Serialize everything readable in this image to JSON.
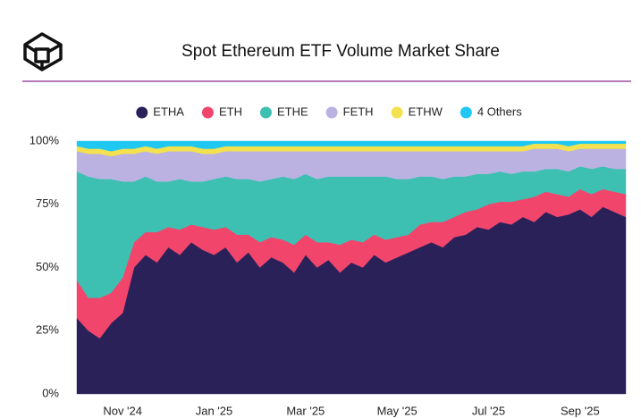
{
  "chart_data": {
    "type": "stacked-area",
    "title": "Spot Ethereum ETF Volume Market Share",
    "categories": [
      null,
      null,
      null,
      null,
      "Nov '24",
      null,
      null,
      null,
      null,
      null,
      null,
      null,
      "Jan '25",
      null,
      null,
      null,
      null,
      null,
      null,
      null,
      "Mar '25",
      null,
      null,
      null,
      null,
      null,
      null,
      null,
      "May '25",
      null,
      null,
      null,
      null,
      null,
      null,
      null,
      "Jul '25",
      null,
      null,
      null,
      null,
      null,
      null,
      null,
      "Sep '25",
      null,
      null,
      null,
      null
    ],
    "series": [
      {
        "name": "ETHA",
        "color": "#2b2159",
        "values": [
          30,
          25,
          22,
          28,
          32,
          50,
          55,
          52,
          58,
          55,
          60,
          57,
          55,
          58,
          52,
          56,
          50,
          54,
          52,
          48,
          55,
          50,
          53,
          48,
          52,
          50,
          55,
          52,
          54,
          56,
          58,
          60,
          58,
          62,
          63,
          66,
          65,
          68,
          67,
          70,
          68,
          72,
          70,
          71,
          73,
          70,
          74,
          72,
          70
        ]
      },
      {
        "name": "ETH",
        "color": "#f2456b",
        "values": [
          15,
          13,
          16,
          12,
          14,
          10,
          9,
          12,
          8,
          10,
          7,
          9,
          10,
          8,
          11,
          7,
          10,
          8,
          9,
          11,
          8,
          10,
          7,
          11,
          9,
          10,
          8,
          9,
          8,
          7,
          9,
          8,
          10,
          8,
          9,
          7,
          10,
          8,
          9,
          7,
          10,
          8,
          9,
          7,
          8,
          9,
          7,
          8,
          9
        ]
      },
      {
        "name": "ETHE",
        "color": "#3dbfb2",
        "values": [
          43,
          48,
          47,
          45,
          38,
          24,
          22,
          20,
          18,
          20,
          17,
          18,
          20,
          20,
          22,
          22,
          24,
          23,
          25,
          26,
          24,
          25,
          26,
          27,
          25,
          26,
          23,
          25,
          23,
          22,
          19,
          18,
          17,
          16,
          14,
          14,
          12,
          12,
          11,
          11,
          10,
          9,
          10,
          10,
          9,
          10,
          9,
          9,
          10
        ]
      },
      {
        "name": "FETH",
        "color": "#bbb2e2",
        "values": [
          8,
          9,
          10,
          9,
          11,
          11,
          10,
          11,
          12,
          11,
          12,
          11,
          10,
          10,
          11,
          11,
          12,
          11,
          10,
          11,
          9,
          11,
          10,
          10,
          10,
          10,
          10,
          10,
          11,
          11,
          10,
          10,
          11,
          10,
          10,
          9,
          9,
          8,
          9,
          8,
          9,
          8,
          8,
          8,
          7,
          8,
          7,
          8,
          8
        ]
      },
      {
        "name": "ETHW",
        "color": "#f4e14f",
        "values": [
          2,
          2,
          2,
          2,
          2,
          2,
          2,
          2,
          2,
          2,
          2,
          2,
          2,
          2,
          2,
          2,
          2,
          2,
          2,
          2,
          2,
          2,
          2,
          2,
          2,
          2,
          2,
          2,
          2,
          2,
          2,
          2,
          2,
          2,
          2,
          2,
          2,
          2,
          2,
          2,
          2,
          2,
          2,
          2,
          2,
          2,
          2,
          2,
          2
        ]
      },
      {
        "name": "4 Others",
        "color": "#1ec8f2",
        "values": [
          2,
          3,
          3,
          4,
          3,
          3,
          2,
          3,
          2,
          2,
          2,
          3,
          3,
          2,
          2,
          2,
          2,
          2,
          2,
          2,
          2,
          2,
          2,
          2,
          2,
          2,
          2,
          2,
          2,
          2,
          2,
          2,
          2,
          2,
          2,
          2,
          2,
          2,
          2,
          2,
          1,
          1,
          1,
          2,
          1,
          1,
          1,
          1,
          1
        ]
      }
    ],
    "ylim": [
      0,
      100
    ],
    "yticks": [
      {
        "value": 0,
        "label": "0%"
      },
      {
        "value": 25,
        "label": "25%"
      },
      {
        "value": 50,
        "label": "50%"
      },
      {
        "value": 75,
        "label": "75%"
      },
      {
        "value": 100,
        "label": "100%"
      }
    ],
    "legend": "top"
  }
}
